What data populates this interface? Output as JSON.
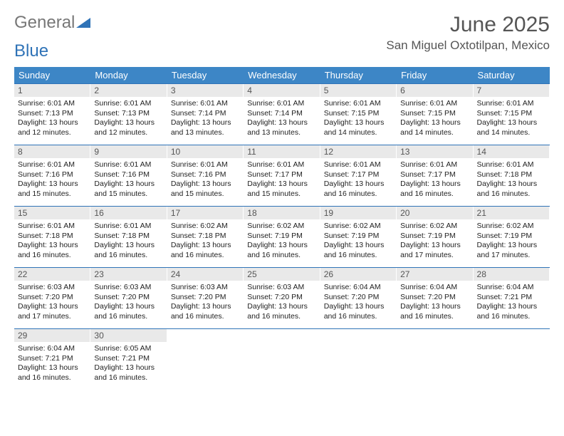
{
  "brand": {
    "part1": "General",
    "part2": "Blue"
  },
  "title": "June 2025",
  "location": "San Miguel Oxtotilpan, Mexico",
  "colors": {
    "header_bg": "#3d86c6",
    "header_text": "#ffffff",
    "daynum_bg": "#e9e9e9",
    "border": "#2f73b7",
    "brand_accent": "#2f73b7",
    "body_text": "#222222",
    "title_text": "#555555"
  },
  "weekdays": [
    "Sunday",
    "Monday",
    "Tuesday",
    "Wednesday",
    "Thursday",
    "Friday",
    "Saturday"
  ],
  "days": [
    {
      "n": "1",
      "sr": "6:01 AM",
      "ss": "7:13 PM",
      "dl": "13 hours and 12 minutes."
    },
    {
      "n": "2",
      "sr": "6:01 AM",
      "ss": "7:13 PM",
      "dl": "13 hours and 12 minutes."
    },
    {
      "n": "3",
      "sr": "6:01 AM",
      "ss": "7:14 PM",
      "dl": "13 hours and 13 minutes."
    },
    {
      "n": "4",
      "sr": "6:01 AM",
      "ss": "7:14 PM",
      "dl": "13 hours and 13 minutes."
    },
    {
      "n": "5",
      "sr": "6:01 AM",
      "ss": "7:15 PM",
      "dl": "13 hours and 14 minutes."
    },
    {
      "n": "6",
      "sr": "6:01 AM",
      "ss": "7:15 PM",
      "dl": "13 hours and 14 minutes."
    },
    {
      "n": "7",
      "sr": "6:01 AM",
      "ss": "7:15 PM",
      "dl": "13 hours and 14 minutes."
    },
    {
      "n": "8",
      "sr": "6:01 AM",
      "ss": "7:16 PM",
      "dl": "13 hours and 15 minutes."
    },
    {
      "n": "9",
      "sr": "6:01 AM",
      "ss": "7:16 PM",
      "dl": "13 hours and 15 minutes."
    },
    {
      "n": "10",
      "sr": "6:01 AM",
      "ss": "7:16 PM",
      "dl": "13 hours and 15 minutes."
    },
    {
      "n": "11",
      "sr": "6:01 AM",
      "ss": "7:17 PM",
      "dl": "13 hours and 15 minutes."
    },
    {
      "n": "12",
      "sr": "6:01 AM",
      "ss": "7:17 PM",
      "dl": "13 hours and 16 minutes."
    },
    {
      "n": "13",
      "sr": "6:01 AM",
      "ss": "7:17 PM",
      "dl": "13 hours and 16 minutes."
    },
    {
      "n": "14",
      "sr": "6:01 AM",
      "ss": "7:18 PM",
      "dl": "13 hours and 16 minutes."
    },
    {
      "n": "15",
      "sr": "6:01 AM",
      "ss": "7:18 PM",
      "dl": "13 hours and 16 minutes."
    },
    {
      "n": "16",
      "sr": "6:01 AM",
      "ss": "7:18 PM",
      "dl": "13 hours and 16 minutes."
    },
    {
      "n": "17",
      "sr": "6:02 AM",
      "ss": "7:18 PM",
      "dl": "13 hours and 16 minutes."
    },
    {
      "n": "18",
      "sr": "6:02 AM",
      "ss": "7:19 PM",
      "dl": "13 hours and 16 minutes."
    },
    {
      "n": "19",
      "sr": "6:02 AM",
      "ss": "7:19 PM",
      "dl": "13 hours and 16 minutes."
    },
    {
      "n": "20",
      "sr": "6:02 AM",
      "ss": "7:19 PM",
      "dl": "13 hours and 17 minutes."
    },
    {
      "n": "21",
      "sr": "6:02 AM",
      "ss": "7:19 PM",
      "dl": "13 hours and 17 minutes."
    },
    {
      "n": "22",
      "sr": "6:03 AM",
      "ss": "7:20 PM",
      "dl": "13 hours and 17 minutes."
    },
    {
      "n": "23",
      "sr": "6:03 AM",
      "ss": "7:20 PM",
      "dl": "13 hours and 16 minutes."
    },
    {
      "n": "24",
      "sr": "6:03 AM",
      "ss": "7:20 PM",
      "dl": "13 hours and 16 minutes."
    },
    {
      "n": "25",
      "sr": "6:03 AM",
      "ss": "7:20 PM",
      "dl": "13 hours and 16 minutes."
    },
    {
      "n": "26",
      "sr": "6:04 AM",
      "ss": "7:20 PM",
      "dl": "13 hours and 16 minutes."
    },
    {
      "n": "27",
      "sr": "6:04 AM",
      "ss": "7:20 PM",
      "dl": "13 hours and 16 minutes."
    },
    {
      "n": "28",
      "sr": "6:04 AM",
      "ss": "7:21 PM",
      "dl": "13 hours and 16 minutes."
    },
    {
      "n": "29",
      "sr": "6:04 AM",
      "ss": "7:21 PM",
      "dl": "13 hours and 16 minutes."
    },
    {
      "n": "30",
      "sr": "6:05 AM",
      "ss": "7:21 PM",
      "dl": "13 hours and 16 minutes."
    }
  ],
  "labels": {
    "sunrise": "Sunrise:",
    "sunset": "Sunset:",
    "daylight": "Daylight:"
  }
}
